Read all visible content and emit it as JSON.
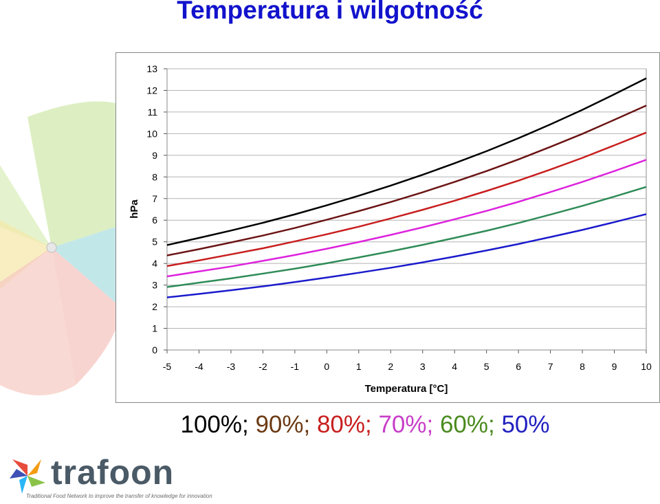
{
  "slide": {
    "title": "Temperatura i wilgotność",
    "legend_text": [
      {
        "text": "100%;",
        "color": "#000000"
      },
      {
        "text": " 90%;",
        "color": "#6b3a14"
      },
      {
        "text": " 80%;",
        "color": "#c81e1e"
      },
      {
        "text": " 70%;",
        "color": "#c83cc8"
      },
      {
        "text": " 60%;",
        "color": "#4a8a1e"
      },
      {
        "text": " 50%",
        "color": "#2020c0"
      }
    ]
  },
  "logo": {
    "name": "trafoon",
    "tagline": "Traditional Food Network to improve the transfer of knowledge for innovation"
  },
  "chart_data": {
    "type": "line",
    "xlabel": "Temperatura [°C]",
    "ylabel": "hPa",
    "xlim": [
      -5,
      10
    ],
    "ylim": [
      0,
      13
    ],
    "x_ticks": [
      -5,
      -4,
      -3,
      -2,
      -1,
      0,
      1,
      2,
      3,
      4,
      5,
      6,
      7,
      8,
      9,
      10
    ],
    "y_ticks": [
      0,
      1,
      2,
      3,
      4,
      5,
      6,
      7,
      8,
      9,
      10,
      11,
      12,
      13
    ],
    "grid": true,
    "x": [
      -5,
      -4,
      -3,
      -2,
      -1,
      0,
      1,
      2,
      3,
      4,
      5,
      6,
      7,
      8,
      9,
      10
    ],
    "series": [
      {
        "color": "#000000",
        "values": [
          4.85,
          5.18,
          5.52,
          5.88,
          6.27,
          6.69,
          7.13,
          7.6,
          8.1,
          8.63,
          9.19,
          9.79,
          10.43,
          11.1,
          11.82,
          12.56
        ]
      },
      {
        "color": "#6b1414",
        "values": [
          4.37,
          4.66,
          4.97,
          5.29,
          5.64,
          6.02,
          6.42,
          6.84,
          7.29,
          7.77,
          8.27,
          8.81,
          9.39,
          9.99,
          10.64,
          11.3
        ]
      },
      {
        "color": "#c81e1e",
        "values": [
          3.88,
          4.14,
          4.42,
          4.7,
          5.02,
          5.35,
          5.7,
          6.08,
          6.48,
          6.9,
          7.35,
          7.83,
          8.34,
          8.88,
          9.46,
          10.05
        ]
      },
      {
        "color": "#dd22dd",
        "values": [
          3.4,
          3.63,
          3.86,
          4.12,
          4.39,
          4.68,
          4.99,
          5.32,
          5.67,
          6.04,
          6.43,
          6.85,
          7.3,
          7.77,
          8.27,
          8.79
        ]
      },
      {
        "color": "#2e8b57",
        "values": [
          2.91,
          3.11,
          3.31,
          3.53,
          3.76,
          4.01,
          4.28,
          4.56,
          4.86,
          5.18,
          5.51,
          5.87,
          6.26,
          6.66,
          7.09,
          7.54
        ]
      },
      {
        "color": "#1a1acc",
        "values": [
          2.43,
          2.59,
          2.76,
          2.94,
          3.14,
          3.35,
          3.57,
          3.8,
          4.05,
          4.32,
          4.6,
          4.9,
          5.22,
          5.55,
          5.91,
          6.28
        ]
      }
    ]
  }
}
